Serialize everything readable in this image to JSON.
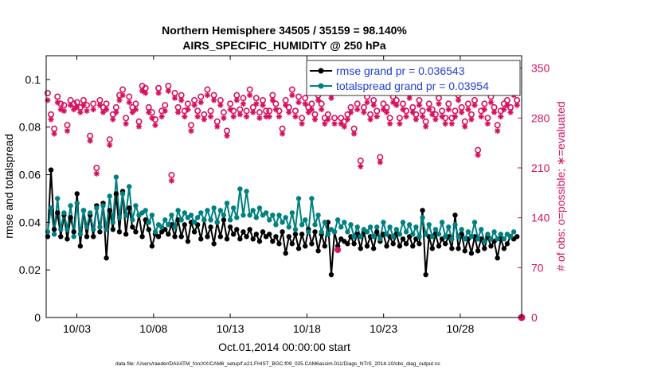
{
  "chart_data": {
    "type": "line",
    "title_line1": "Northern Hemisphere 34505 / 35159 = 98.140%",
    "title_line2": "AIRS_SPECIFIC_HUMIDITY @ 250 hPa",
    "xlabel": "Oct.01,2014 00:00:00 start",
    "ylabel_left": "rmse and totalspread",
    "ylabel_right": "# of obs: o=possible; ∗=evaluated",
    "footer": "data file: /Users/raeder/DAI/ATM_forcXX/CAM6_setup/f.e21.FHIST_BGC.f09_025.CAM6assim.011/Diags_NTrS_2014-10/obs_diag_output.nc",
    "x_tick_labels": [
      "10/03",
      "10/08",
      "10/13",
      "10/18",
      "10/23",
      "10/28"
    ],
    "x_tick_days": [
      3,
      8,
      13,
      18,
      23,
      28
    ],
    "xlim_days": [
      1.0,
      32.0
    ],
    "ylim_left": [
      0,
      0.11
    ],
    "y_ticks_left": [
      0,
      0.02,
      0.04,
      0.06,
      0.08,
      0.1
    ],
    "y_tick_labels_left": [
      "0",
      "0.02",
      "0.04",
      "0.06",
      "0.08",
      "0.1"
    ],
    "ylim_right": [
      0,
      367.5
    ],
    "y_ticks_right": [
      0,
      70,
      140,
      210,
      280,
      350
    ],
    "y_tick_labels_right": [
      "0",
      "70",
      "140",
      "210",
      "280",
      "350"
    ],
    "legend_location": "top-right",
    "colors": {
      "rmse": "#000000",
      "spread": "#008080",
      "obs": "#d6105e"
    },
    "series": [
      {
        "name": "rmse grand pr = 0.036543",
        "color": "#000000",
        "values": [
          0.034,
          0.062,
          0.037,
          0.044,
          0.034,
          0.043,
          0.033,
          0.042,
          0.036,
          0.052,
          0.03,
          0.045,
          0.034,
          0.043,
          0.034,
          0.047,
          0.036,
          0.048,
          0.025,
          0.045,
          0.037,
          0.052,
          0.036,
          0.053,
          0.035,
          0.046,
          0.038,
          0.036,
          0.043,
          0.034,
          0.041,
          0.037,
          0.03,
          0.035,
          0.034,
          0.036,
          0.037,
          0.035,
          0.039,
          0.034,
          0.041,
          0.034,
          0.039,
          0.032,
          0.04,
          0.036,
          0.039,
          0.033,
          0.041,
          0.034,
          0.038,
          0.031,
          0.04,
          0.034,
          0.041,
          0.033,
          0.038,
          0.035,
          0.037,
          0.033,
          0.036,
          0.034,
          0.037,
          0.033,
          0.035,
          0.032,
          0.036,
          0.034,
          0.035,
          0.032,
          0.034,
          0.031,
          0.036,
          0.027,
          0.034,
          0.031,
          0.035,
          0.029,
          0.035,
          0.03,
          0.037,
          0.031,
          0.036,
          0.028,
          0.035,
          0.03,
          0.04,
          0.018,
          0.036,
          0.03,
          0.033,
          0.032,
          0.031,
          0.034,
          0.031,
          0.035,
          0.029,
          0.036,
          0.03,
          0.034,
          0.029,
          0.036,
          0.032,
          0.035,
          0.03,
          0.034,
          0.031,
          0.035,
          0.03,
          0.033,
          0.031,
          0.034,
          0.03,
          0.033,
          0.031,
          0.045,
          0.018,
          0.034,
          0.029,
          0.035,
          0.03,
          0.033,
          0.031,
          0.034,
          0.029,
          0.043,
          0.029,
          0.035,
          0.028,
          0.033,
          0.027,
          0.034,
          0.028,
          0.033,
          0.029,
          0.034,
          0.03,
          0.032,
          0.025,
          0.033,
          0.029,
          0.031,
          0.034,
          0.033,
          0.034
        ]
      },
      {
        "name": "totalspread grand pr = 0.03954",
        "color": "#008080",
        "values": [
          0.036,
          0.046,
          0.035,
          0.05,
          0.037,
          0.044,
          0.037,
          0.047,
          0.034,
          0.048,
          0.035,
          0.045,
          0.038,
          0.044,
          0.037,
          0.046,
          0.038,
          0.047,
          0.037,
          0.051,
          0.04,
          0.059,
          0.042,
          0.052,
          0.043,
          0.055,
          0.041,
          0.047,
          0.043,
          0.044,
          0.045,
          0.04,
          0.043,
          0.036,
          0.039,
          0.038,
          0.041,
          0.039,
          0.043,
          0.038,
          0.045,
          0.041,
          0.044,
          0.042,
          0.043,
          0.04,
          0.042,
          0.044,
          0.041,
          0.045,
          0.041,
          0.046,
          0.04,
          0.045,
          0.043,
          0.048,
          0.041,
          0.046,
          0.042,
          0.054,
          0.043,
          0.053,
          0.043,
          0.045,
          0.042,
          0.046,
          0.043,
          0.044,
          0.041,
          0.043,
          0.039,
          0.043,
          0.04,
          0.042,
          0.038,
          0.044,
          0.037,
          0.05,
          0.039,
          0.041,
          0.036,
          0.05,
          0.039,
          0.043,
          0.036,
          0.04,
          0.035,
          0.037,
          0.036,
          0.041,
          0.038,
          0.04,
          0.036,
          0.039,
          0.034,
          0.038,
          0.034,
          0.037,
          0.036,
          0.038,
          0.034,
          0.038,
          0.033,
          0.04,
          0.035,
          0.038,
          0.034,
          0.037,
          0.035,
          0.04,
          0.036,
          0.039,
          0.035,
          0.038,
          0.034,
          0.042,
          0.035,
          0.039,
          0.034,
          0.037,
          0.035,
          0.04,
          0.034,
          0.038,
          0.033,
          0.039,
          0.034,
          0.037,
          0.033,
          0.036,
          0.034,
          0.04,
          0.033,
          0.037,
          0.032,
          0.035,
          0.033,
          0.036,
          0.033,
          0.035,
          0.033,
          0.035,
          0.034,
          0.036
        ]
      },
      {
        "name": "obs possible (o)",
        "axis": "right",
        "color": "#d6105e",
        "marker": "o",
        "values": [
          315,
          285,
          265,
          310,
          300,
          298,
          270,
          305,
          300,
          302,
          295,
          305,
          298,
          255,
          300,
          210,
          305,
          295,
          300,
          250,
          285,
          295,
          312,
          320,
          280,
          310,
          295,
          300,
          275,
          325,
          322,
          295,
          288,
          278,
          322,
          290,
          298,
          325,
          200,
          315,
          295,
          312,
          290,
          300,
          270,
          305,
          290,
          310,
          285,
          320,
          290,
          312,
          275,
          305,
          288,
          262,
          300,
          290,
          312,
          292,
          308,
          290,
          320,
          295,
          308,
          288,
          305,
          290,
          290,
          312,
          300,
          290,
          265,
          305,
          295,
          320,
          290,
          310,
          280,
          308,
          295,
          300,
          285,
          312,
          300,
          280,
          285,
          315,
          280,
          95,
          280,
          275,
          285,
          295,
          265,
          300,
          220,
          295,
          310,
          285,
          305,
          290,
          225,
          300,
          295,
          280,
          310,
          305,
          280,
          300,
          290,
          315,
          295,
          285,
          305,
          290,
          275,
          300,
          292,
          285,
          308,
          290,
          280,
          300,
          280,
          290,
          312,
          295,
          275,
          300,
          285,
          305,
          235,
          290,
          300,
          280,
          310,
          295,
          270,
          290,
          300,
          305,
          295,
          320,
          305
        ]
      },
      {
        "name": "obs evaluated (∗)",
        "axis": "right",
        "color": "#d6105e",
        "marker": "*",
        "values": [
          305,
          278,
          258,
          302,
          292,
          290,
          262,
          298,
          292,
          295,
          288,
          298,
          290,
          248,
          292,
          202,
          298,
          288,
          292,
          242,
          278,
          288,
          305,
          312,
          272,
          302,
          288,
          292,
          268,
          318,
          315,
          288,
          280,
          270,
          315,
          282,
          290,
          318,
          192,
          308,
          288,
          305,
          282,
          292,
          262,
          298,
          282,
          302,
          278,
          312,
          282,
          305,
          268,
          298,
          280,
          255,
          292,
          282,
          305,
          285,
          300,
          282,
          312,
          288,
          300,
          280,
          298,
          282,
          282,
          305,
          292,
          282,
          258,
          298,
          288,
          312,
          282,
          302,
          272,
          300,
          288,
          292,
          278,
          305,
          292,
          272,
          278,
          308,
          272,
          95,
          272,
          268,
          278,
          288,
          258,
          292,
          212,
          288,
          302,
          278,
          298,
          282,
          218,
          292,
          288,
          272,
          302,
          298,
          272,
          292,
          282,
          308,
          288,
          278,
          298,
          282,
          268,
          292,
          285,
          278,
          300,
          282,
          272,
          292,
          272,
          282,
          305,
          288,
          268,
          292,
          278,
          298,
          228,
          282,
          292,
          272,
          302,
          288,
          262,
          282,
          292,
          298,
          288,
          312,
          298
        ]
      }
    ]
  }
}
